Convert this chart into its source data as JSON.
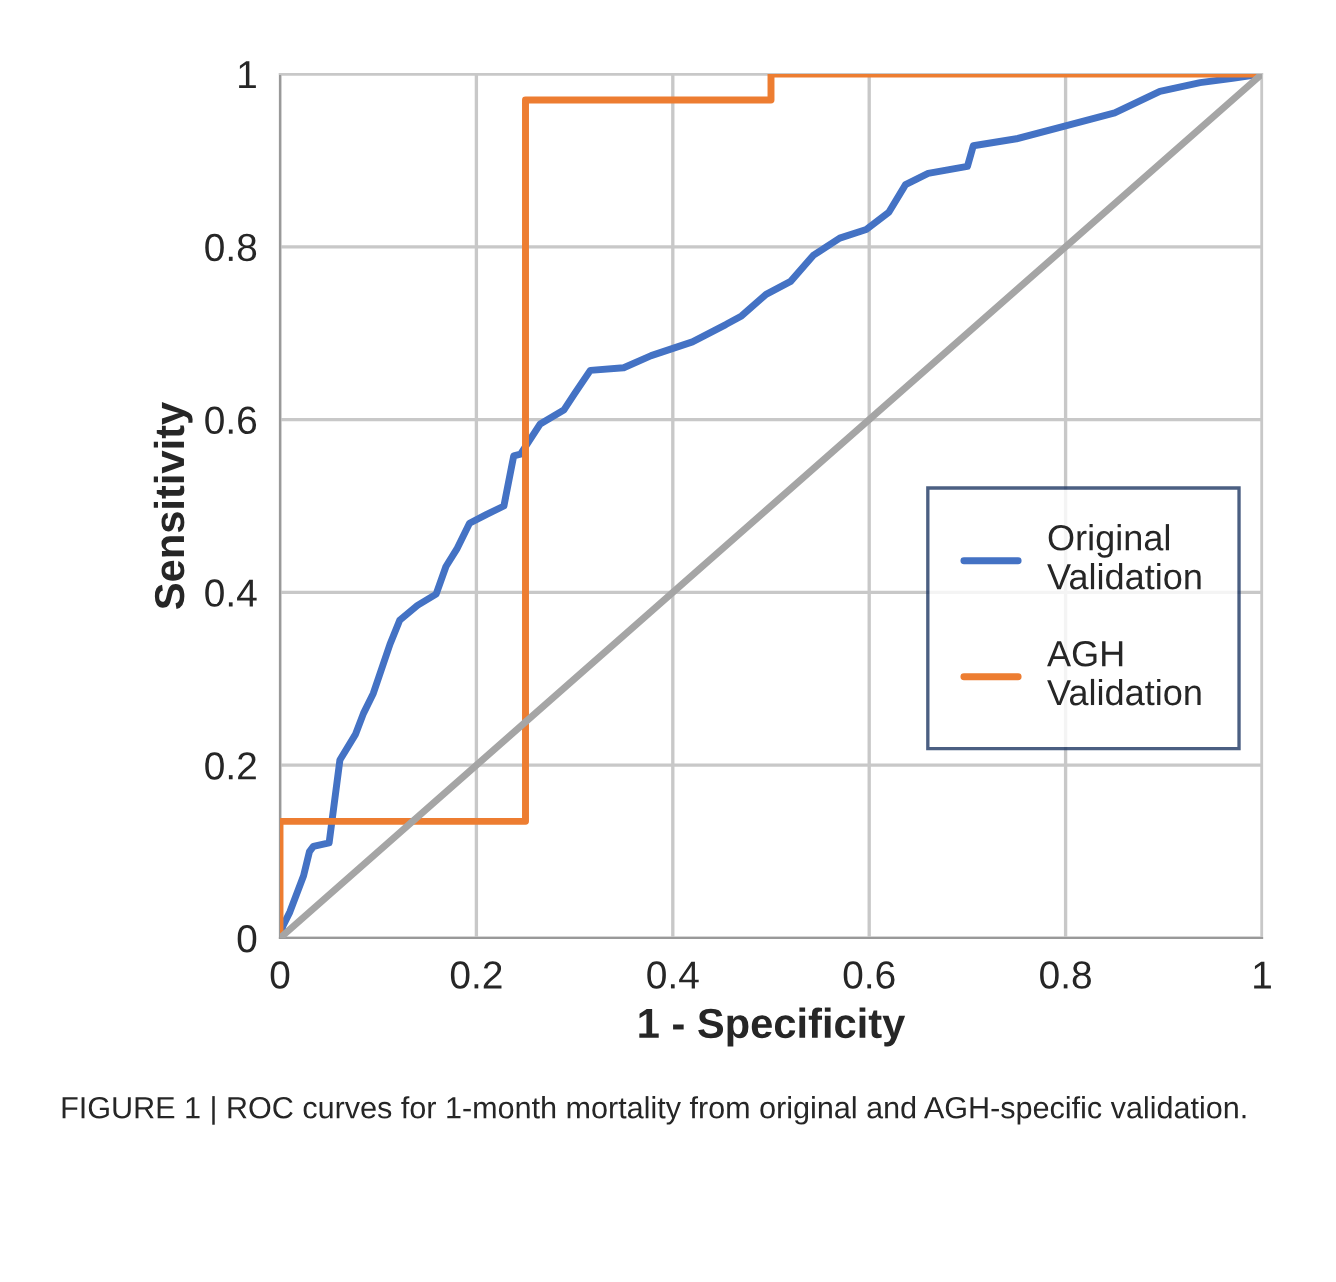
{
  "chart_data": {
    "type": "line",
    "xlabel": "1 - Specificity",
    "ylabel": "Sensitivity",
    "series": [
      {
        "name": "Original Validation",
        "color": "#4472c4",
        "x": [
          0,
          0.003,
          0.01,
          0.024,
          0.03,
          0.034,
          0.05,
          0.061,
          0.077,
          0.085,
          0.095,
          0.112,
          0.122,
          0.14,
          0.159,
          0.169,
          0.18,
          0.193,
          0.21,
          0.228,
          0.238,
          0.245,
          0.265,
          0.289,
          0.3,
          0.316,
          0.35,
          0.378,
          0.42,
          0.454,
          0.47,
          0.495,
          0.52,
          0.543,
          0.57,
          0.597,
          0.62,
          0.637,
          0.66,
          0.7,
          0.706,
          0.75,
          0.8,
          0.85,
          0.896,
          0.937,
          0.97,
          1
        ],
        "values": [
          0,
          0.014,
          0.03,
          0.072,
          0.1,
          0.106,
          0.11,
          0.206,
          0.236,
          0.26,
          0.283,
          0.34,
          0.368,
          0.385,
          0.398,
          0.43,
          0.45,
          0.48,
          0.49,
          0.5,
          0.558,
          0.56,
          0.595,
          0.611,
          0.63,
          0.657,
          0.66,
          0.674,
          0.69,
          0.71,
          0.72,
          0.745,
          0.76,
          0.79,
          0.81,
          0.82,
          0.84,
          0.872,
          0.885,
          0.893,
          0.917,
          0.925,
          0.94,
          0.955,
          0.98,
          0.99,
          0.995,
          1
        ]
      },
      {
        "name": "AGH Validation",
        "color": "#ed7d31",
        "x": [
          0,
          0,
          0.25,
          0.25,
          0.5,
          0.5,
          1
        ],
        "values": [
          0,
          0.135,
          0.135,
          0.97,
          0.97,
          1,
          1
        ]
      },
      {
        "color": "#a5a5a5",
        "x": [
          0,
          1
        ],
        "values": [
          0,
          1
        ]
      }
    ],
    "xlim": [
      0,
      1
    ],
    "ylim": [
      0,
      1
    ],
    "xticks": [
      0,
      0.2,
      0.4,
      0.6,
      0.8,
      1
    ],
    "yticks": [
      0,
      0.2,
      0.4,
      0.6,
      0.8,
      1
    ],
    "grid": true,
    "legend": "right",
    "annotations": [
      "FIGURE 1 | ROC curves for 1-month mortality from original and AGH-specific validation."
    ]
  }
}
